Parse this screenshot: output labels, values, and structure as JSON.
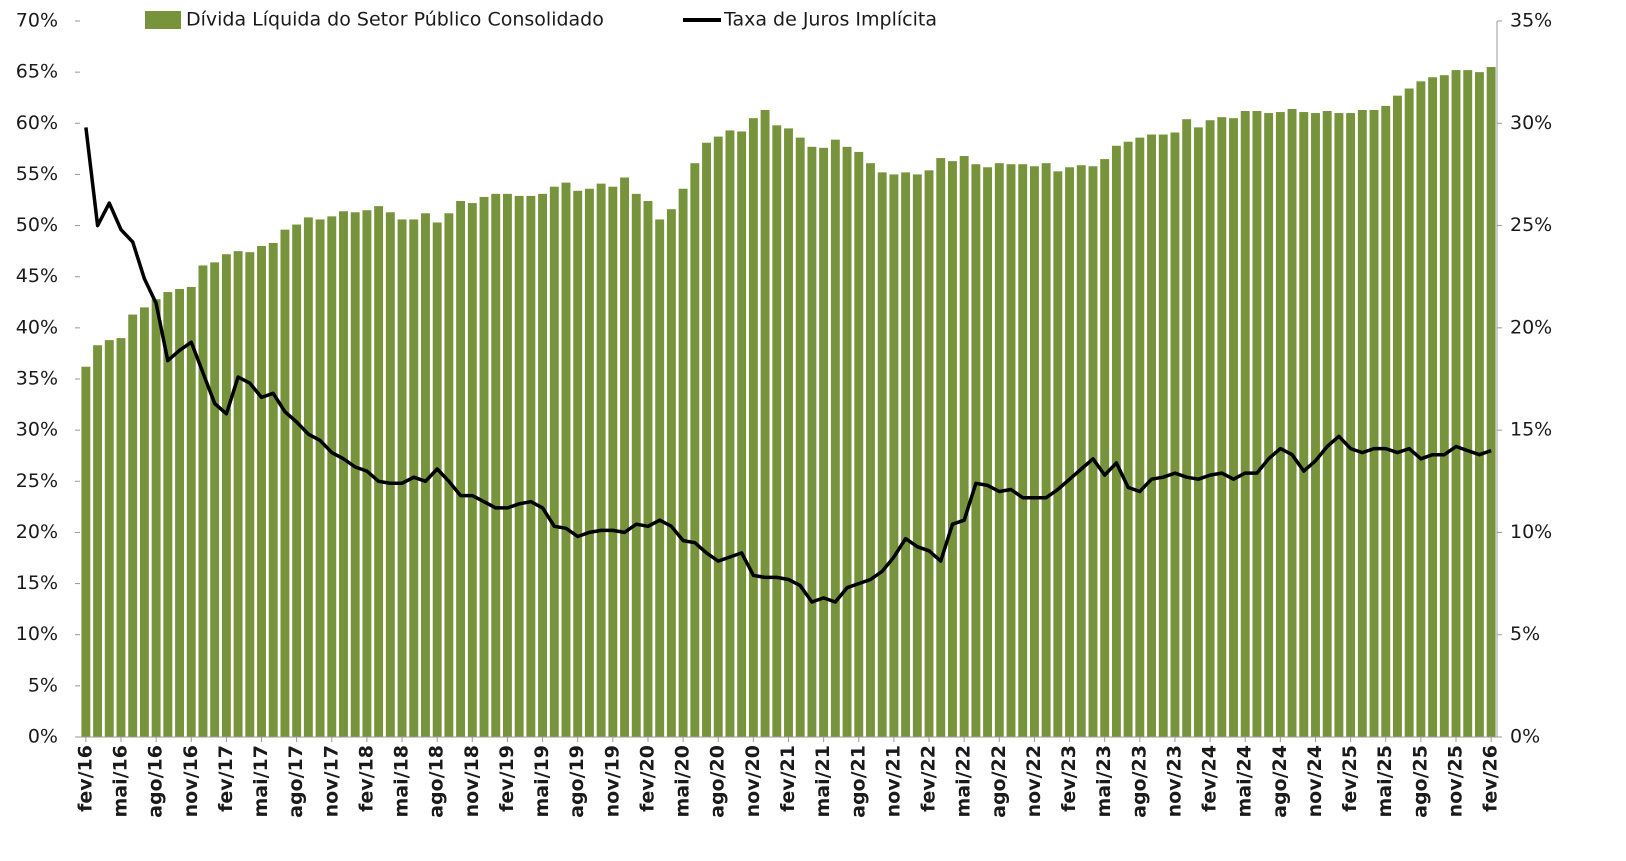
{
  "chart_data": {
    "type": "bar",
    "categories": [
      "fev/16",
      null,
      null,
      "mai/16",
      null,
      null,
      "ago/16",
      null,
      null,
      "nov/16",
      null,
      null,
      "fev/17",
      null,
      null,
      "mai/17",
      null,
      null,
      "ago/17",
      null,
      null,
      "nov/17",
      null,
      null,
      "fev/18",
      null,
      null,
      "mai/18",
      null,
      null,
      "ago/18",
      null,
      null,
      "nov/18",
      null,
      null,
      "fev/19",
      null,
      null,
      "mai/19",
      null,
      null,
      "ago/19",
      null,
      null,
      "nov/19",
      null,
      null,
      "fev/20",
      null,
      null,
      "mai/20",
      null,
      null,
      "ago/20",
      null,
      null,
      "nov/20",
      null,
      null,
      "fev/21",
      null,
      null,
      "mai/21",
      null,
      null,
      "ago/21",
      null,
      null,
      "nov/21",
      null,
      null,
      "fev/22",
      null,
      null,
      "mai/22",
      null,
      null,
      "ago/22",
      null,
      null,
      "nov/22",
      null,
      null,
      "fev/23",
      null,
      null,
      "mai/23",
      null,
      null,
      "ago/23",
      null,
      null,
      "nov/23",
      null,
      null,
      "fev/24",
      null,
      null,
      "mai/24",
      null,
      null,
      "ago/24",
      null,
      null,
      "nov/24",
      null,
      null,
      "fev/25",
      null,
      null,
      "mai/25",
      null,
      null,
      "ago/25",
      null,
      null,
      "nov/25",
      null,
      null,
      "fev/26"
    ],
    "series": [
      {
        "name": "Dívida Líquida do Setor Público Consolidado",
        "type": "bar",
        "color": "#77933c",
        "values": [
          36.2,
          38.3,
          38.8,
          39.0,
          41.3,
          42.0,
          42.8,
          43.5,
          43.8,
          44.0,
          46.1,
          46.4,
          47.2,
          47.5,
          47.4,
          48.0,
          48.3,
          49.6,
          50.1,
          50.8,
          50.6,
          50.9,
          51.4,
          51.3,
          51.5,
          51.9,
          51.3,
          50.6,
          50.6,
          51.2,
          50.3,
          51.2,
          52.4,
          52.2,
          52.8,
          53.1,
          53.1,
          52.9,
          52.9,
          53.1,
          53.8,
          54.2,
          53.4,
          53.6,
          54.1,
          53.8,
          54.7,
          53.1,
          52.4,
          50.6,
          51.6,
          53.6,
          56.1,
          58.1,
          58.7,
          59.3,
          59.2,
          60.5,
          61.3,
          59.8,
          59.5,
          58.6,
          57.7,
          57.6,
          58.4,
          57.7,
          57.2,
          56.1,
          55.2,
          55.0,
          55.2,
          55.0,
          55.4,
          56.6,
          56.3,
          56.8,
          56.0,
          55.7,
          56.1,
          56.0,
          56.0,
          55.8,
          56.1,
          55.3,
          55.7,
          55.9,
          55.8,
          56.5,
          57.8,
          58.2,
          58.6,
          58.9,
          58.9,
          59.1,
          60.4,
          59.6,
          60.3,
          60.6,
          60.5,
          61.2,
          61.2,
          61.0,
          61.1,
          61.4,
          61.1,
          61.0,
          61.2,
          61.0,
          61.0,
          61.3,
          61.3,
          61.7,
          62.7,
          63.4,
          64.1,
          64.5,
          64.7,
          65.2,
          65.2,
          65.0,
          65.5
        ]
      },
      {
        "name": "Taxa de Juros Implícita",
        "type": "line",
        "axis": "y2",
        "color": "#000000",
        "values": [
          29.8,
          25.0,
          26.1,
          24.8,
          24.2,
          22.4,
          21.2,
          18.4,
          18.9,
          19.3,
          17.8,
          16.3,
          15.8,
          17.6,
          17.3,
          16.6,
          16.8,
          15.9,
          15.4,
          14.8,
          14.5,
          13.9,
          13.6,
          13.2,
          13.0,
          12.5,
          12.4,
          12.4,
          12.7,
          12.5,
          13.1,
          12.5,
          11.8,
          11.8,
          11.5,
          11.2,
          11.2,
          11.4,
          11.5,
          11.2,
          10.3,
          10.2,
          9.8,
          10.0,
          10.1,
          10.1,
          10.0,
          10.4,
          10.3,
          10.6,
          10.3,
          9.6,
          9.5,
          9.0,
          8.6,
          8.8,
          9.0,
          7.9,
          7.8,
          7.8,
          7.7,
          7.4,
          6.6,
          6.8,
          6.6,
          7.3,
          7.5,
          7.7,
          8.1,
          8.8,
          9.7,
          9.3,
          9.1,
          8.6,
          10.4,
          10.6,
          12.4,
          12.3,
          12.0,
          12.1,
          11.7,
          11.7,
          11.7,
          12.1,
          12.6,
          13.1,
          13.6,
          12.8,
          13.4,
          12.2,
          12.0,
          12.6,
          12.7,
          12.9,
          12.7,
          12.6,
          12.8,
          12.9,
          12.6,
          12.9,
          12.9,
          13.6,
          14.1,
          13.8,
          13.0,
          13.5,
          14.2,
          14.7,
          14.1,
          13.9,
          14.1,
          14.1,
          13.9,
          14.1,
          13.6,
          13.8,
          13.8,
          14.2,
          14.0,
          13.8,
          14.0
        ]
      }
    ],
    "ylim": [
      0,
      70
    ],
    "yticks": [
      {
        "value": 0,
        "label": "0%"
      },
      {
        "value": 5,
        "label": "5%"
      },
      {
        "value": 10,
        "label": "10%"
      },
      {
        "value": 15,
        "label": "15%"
      },
      {
        "value": 20,
        "label": "20%"
      },
      {
        "value": 25,
        "label": "25%"
      },
      {
        "value": 30,
        "label": "30%"
      },
      {
        "value": 35,
        "label": "35%"
      },
      {
        "value": 40,
        "label": "40%"
      },
      {
        "value": 45,
        "label": "45%"
      },
      {
        "value": 50,
        "label": "50%"
      },
      {
        "value": 55,
        "label": "55%"
      },
      {
        "value": 60,
        "label": "60%"
      },
      {
        "value": 65,
        "label": "65%"
      },
      {
        "value": 70,
        "label": "70%"
      }
    ],
    "y2lim": [
      0,
      35
    ],
    "y2ticks": [
      {
        "value": 0,
        "label": "0%"
      },
      {
        "value": 5,
        "label": "5%"
      },
      {
        "value": 10,
        "label": "10%"
      },
      {
        "value": 15,
        "label": "15%"
      },
      {
        "value": 20,
        "label": "20%"
      },
      {
        "value": 25,
        "label": "25%"
      },
      {
        "value": 30,
        "label": "30%"
      },
      {
        "value": 35,
        "label": "35%"
      }
    ],
    "legend": "top",
    "grid": false
  }
}
